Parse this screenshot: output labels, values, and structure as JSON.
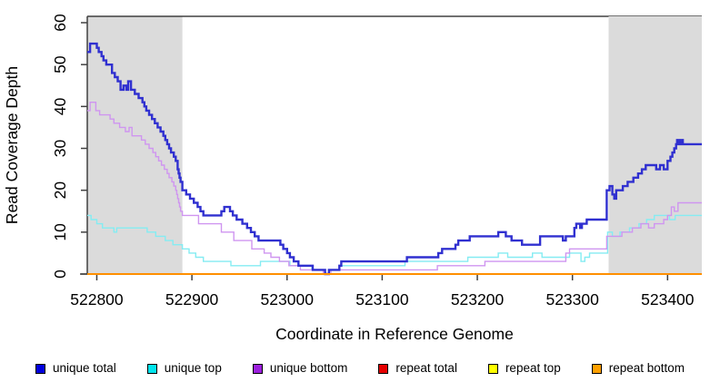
{
  "chart_data": {
    "type": "line",
    "subtype": "step-after",
    "title": "",
    "xlabel": "Coordinate in Reference Genome",
    "ylabel": "Read Coverage Depth",
    "xlim": [
      522790,
      523436
    ],
    "ylim": [
      0,
      60
    ],
    "x_ticks": [
      522800,
      522900,
      523000,
      523100,
      523200,
      523300,
      523400
    ],
    "x_tick_labels": [
      "522800",
      "522900",
      "523000",
      "523100",
      "523200",
      "523300",
      "523400"
    ],
    "y_ticks": [
      0,
      10,
      20,
      30,
      40,
      50,
      60
    ],
    "y_tick_labels": [
      "0",
      "10",
      "20",
      "30",
      "40",
      "50",
      "60"
    ],
    "grid": false,
    "legend_position": "bottom",
    "axis_color": "#404040",
    "shaded_regions": {
      "color": "#dbdbdb",
      "ranges": [
        [
          522790,
          522890
        ],
        [
          523338,
          523436
        ]
      ]
    },
    "draw_order": [
      "unique top",
      "unique bottom",
      "unique total",
      "repeat total",
      "repeat top",
      "repeat bottom"
    ],
    "series": [
      {
        "name": "unique total",
        "legend_color": "#0000dd",
        "line_color": "#3030d0",
        "line_width": 2.4,
        "points": [
          [
            522790,
            53
          ],
          [
            522793,
            55
          ],
          [
            522800,
            54
          ],
          [
            522802,
            53
          ],
          [
            522805,
            52
          ],
          [
            522807,
            51
          ],
          [
            522810,
            50
          ],
          [
            522816,
            48
          ],
          [
            522819,
            47
          ],
          [
            522822,
            46
          ],
          [
            522825,
            44
          ],
          [
            522828,
            45
          ],
          [
            522831,
            44
          ],
          [
            522833,
            46
          ],
          [
            522836,
            44
          ],
          [
            522840,
            43
          ],
          [
            522844,
            42
          ],
          [
            522848,
            41
          ],
          [
            522850,
            40
          ],
          [
            522852,
            39
          ],
          [
            522855,
            38
          ],
          [
            522858,
            37
          ],
          [
            522861,
            36
          ],
          [
            522864,
            35
          ],
          [
            522867,
            34
          ],
          [
            522870,
            33
          ],
          [
            522872,
            32
          ],
          [
            522874,
            31
          ],
          [
            522876,
            30
          ],
          [
            522878,
            29
          ],
          [
            522881,
            28
          ],
          [
            522883,
            27
          ],
          [
            522885,
            25
          ],
          [
            522886,
            24
          ],
          [
            522887,
            23
          ],
          [
            522888,
            22
          ],
          [
            522890,
            20
          ],
          [
            522894,
            19
          ],
          [
            522898,
            18
          ],
          [
            522902,
            17
          ],
          [
            522906,
            16
          ],
          [
            522909,
            15
          ],
          [
            522912,
            14
          ],
          [
            522931,
            15
          ],
          [
            522934,
            16
          ],
          [
            522940,
            15
          ],
          [
            522943,
            14
          ],
          [
            522947,
            13
          ],
          [
            522953,
            12
          ],
          [
            522958,
            11
          ],
          [
            522962,
            10
          ],
          [
            522966,
            9
          ],
          [
            522970,
            8
          ],
          [
            522993,
            7
          ],
          [
            522996,
            6
          ],
          [
            523000,
            5
          ],
          [
            523003,
            4
          ],
          [
            523007,
            3
          ],
          [
            523012,
            2
          ],
          [
            523027,
            1
          ],
          [
            523040,
            0
          ],
          [
            523044,
            1
          ],
          [
            523055,
            2
          ],
          [
            523057,
            3
          ],
          [
            523126,
            4
          ],
          [
            523159,
            5
          ],
          [
            523163,
            6
          ],
          [
            523177,
            7
          ],
          [
            523180,
            8
          ],
          [
            523192,
            9
          ],
          [
            523222,
            10
          ],
          [
            523230,
            9
          ],
          [
            523236,
            8
          ],
          [
            523247,
            7
          ],
          [
            523266,
            9
          ],
          [
            523290,
            8
          ],
          [
            523293,
            9
          ],
          [
            523302,
            11
          ],
          [
            523304,
            12
          ],
          [
            523308,
            11
          ],
          [
            523310,
            12
          ],
          [
            523315,
            13
          ],
          [
            523336,
            20
          ],
          [
            523339,
            21
          ],
          [
            523342,
            19
          ],
          [
            523344,
            18
          ],
          [
            523346,
            20
          ],
          [
            523353,
            21
          ],
          [
            523358,
            22
          ],
          [
            523364,
            23
          ],
          [
            523369,
            24
          ],
          [
            523373,
            25
          ],
          [
            523377,
            26
          ],
          [
            523388,
            25
          ],
          [
            523392,
            26
          ],
          [
            523396,
            25
          ],
          [
            523400,
            27
          ],
          [
            523403,
            28
          ],
          [
            523405,
            29
          ],
          [
            523407,
            30
          ],
          [
            523409,
            31
          ],
          [
            523410,
            32
          ],
          [
            523412,
            31
          ],
          [
            523414,
            32
          ],
          [
            523416,
            31
          ],
          [
            523436,
            31
          ]
        ]
      },
      {
        "name": "unique top",
        "legend_color": "#00e5ee",
        "line_color": "#84ecf2",
        "line_width": 1.4,
        "points": [
          [
            522790,
            14
          ],
          [
            522794,
            13
          ],
          [
            522800,
            12
          ],
          [
            522806,
            11
          ],
          [
            522818,
            10
          ],
          [
            522821,
            11
          ],
          [
            522853,
            10
          ],
          [
            522862,
            9
          ],
          [
            522872,
            8
          ],
          [
            522880,
            7
          ],
          [
            522890,
            6
          ],
          [
            522897,
            5
          ],
          [
            522904,
            4
          ],
          [
            522912,
            3
          ],
          [
            522941,
            2
          ],
          [
            522972,
            3
          ],
          [
            523003,
            2
          ],
          [
            523026,
            1
          ],
          [
            523040,
            0
          ],
          [
            523046,
            1
          ],
          [
            523055,
            2
          ],
          [
            523124,
            3
          ],
          [
            523190,
            4
          ],
          [
            523222,
            5
          ],
          [
            523232,
            4
          ],
          [
            523258,
            5
          ],
          [
            523268,
            4
          ],
          [
            523297,
            5
          ],
          [
            523309,
            3
          ],
          [
            523313,
            4
          ],
          [
            523318,
            5
          ],
          [
            523337,
            10
          ],
          [
            523342,
            9
          ],
          [
            523350,
            10
          ],
          [
            523360,
            11
          ],
          [
            523370,
            12
          ],
          [
            523378,
            13
          ],
          [
            523386,
            14
          ],
          [
            523402,
            13
          ],
          [
            523408,
            14
          ],
          [
            523436,
            14
          ]
        ]
      },
      {
        "name": "unique bottom",
        "legend_color": "#9c20dd",
        "line_color": "#cf95f0",
        "line_width": 1.4,
        "points": [
          [
            522790,
            39
          ],
          [
            522793,
            41
          ],
          [
            522799,
            39
          ],
          [
            522803,
            38
          ],
          [
            522814,
            37
          ],
          [
            522818,
            36
          ],
          [
            522824,
            35
          ],
          [
            522830,
            34
          ],
          [
            522834,
            35
          ],
          [
            522837,
            33
          ],
          [
            522847,
            32
          ],
          [
            522851,
            31
          ],
          [
            522855,
            30
          ],
          [
            522859,
            29
          ],
          [
            522862,
            28
          ],
          [
            522865,
            27
          ],
          [
            522868,
            26
          ],
          [
            522871,
            25
          ],
          [
            522874,
            24
          ],
          [
            522876,
            23
          ],
          [
            522879,
            22
          ],
          [
            522881,
            21
          ],
          [
            522883,
            20
          ],
          [
            522884,
            19
          ],
          [
            522885,
            18
          ],
          [
            522886,
            17
          ],
          [
            522887,
            16
          ],
          [
            522888,
            15
          ],
          [
            522890,
            14
          ],
          [
            522907,
            12
          ],
          [
            522931,
            10
          ],
          [
            522944,
            8
          ],
          [
            522963,
            6
          ],
          [
            522976,
            5
          ],
          [
            522983,
            4
          ],
          [
            522992,
            3
          ],
          [
            523002,
            2
          ],
          [
            523014,
            1
          ],
          [
            523038,
            0
          ],
          [
            523046,
            1
          ],
          [
            523158,
            2
          ],
          [
            523208,
            3
          ],
          [
            523293,
            5
          ],
          [
            523297,
            6
          ],
          [
            523336,
            9
          ],
          [
            523352,
            10
          ],
          [
            523363,
            11
          ],
          [
            523372,
            12
          ],
          [
            523380,
            11
          ],
          [
            523386,
            12
          ],
          [
            523396,
            13
          ],
          [
            523400,
            14
          ],
          [
            523404,
            16
          ],
          [
            523407,
            15
          ],
          [
            523411,
            17
          ],
          [
            523436,
            17
          ]
        ]
      },
      {
        "name": "repeat total",
        "legend_color": "#e60000",
        "line_color": "#e60000",
        "line_width": 1.4,
        "points": [
          [
            522790,
            0
          ],
          [
            523436,
            0
          ]
        ]
      },
      {
        "name": "repeat top",
        "legend_color": "#ffff00",
        "line_color": "#ffff00",
        "line_width": 1.4,
        "points": [
          [
            522790,
            0
          ],
          [
            523436,
            0
          ]
        ]
      },
      {
        "name": "repeat bottom",
        "legend_color": "#ffa000",
        "line_color": "#ff8f00",
        "line_width": 2,
        "points": [
          [
            522790,
            0
          ],
          [
            523436,
            0
          ]
        ]
      }
    ]
  }
}
